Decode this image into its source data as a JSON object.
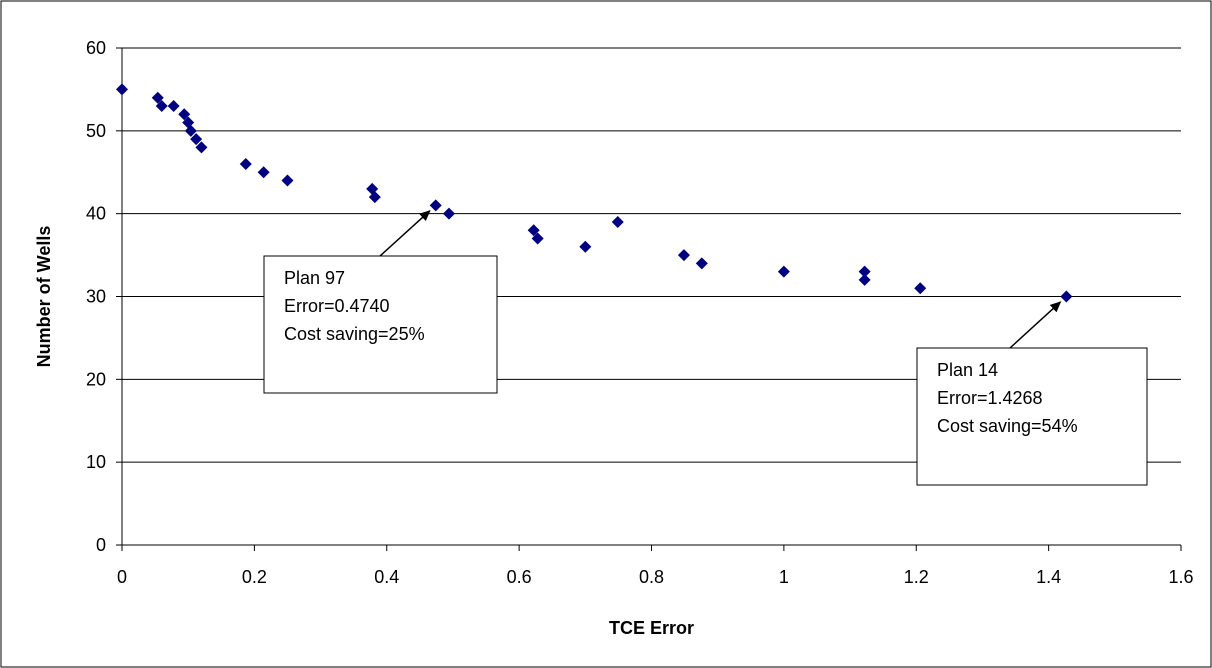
{
  "chart_data": {
    "type": "scatter",
    "title": "",
    "xlabel": "TCE Error",
    "ylabel": "Number of Wells",
    "xlim": [
      0,
      1.6
    ],
    "ylim": [
      0,
      60
    ],
    "x_ticks": [
      0,
      0.2,
      0.4,
      0.6,
      0.8,
      1,
      1.2,
      1.4,
      1.6
    ],
    "y_ticks": [
      0,
      10,
      20,
      30,
      40,
      50,
      60
    ],
    "grid": "horizontal",
    "legend": "none",
    "marker": "diamond",
    "marker_color": "#000080",
    "points": [
      {
        "x": 0.0,
        "y": 55
      },
      {
        "x": 0.054,
        "y": 54
      },
      {
        "x": 0.06,
        "y": 53
      },
      {
        "x": 0.078,
        "y": 53
      },
      {
        "x": 0.094,
        "y": 52
      },
      {
        "x": 0.1,
        "y": 51
      },
      {
        "x": 0.104,
        "y": 50
      },
      {
        "x": 0.112,
        "y": 49
      },
      {
        "x": 0.12,
        "y": 48
      },
      {
        "x": 0.187,
        "y": 46
      },
      {
        "x": 0.214,
        "y": 45
      },
      {
        "x": 0.25,
        "y": 44
      },
      {
        "x": 0.378,
        "y": 43
      },
      {
        "x": 0.382,
        "y": 42
      },
      {
        "x": 0.474,
        "y": 41
      },
      {
        "x": 0.494,
        "y": 40
      },
      {
        "x": 0.622,
        "y": 38
      },
      {
        "x": 0.628,
        "y": 37
      },
      {
        "x": 0.7,
        "y": 36
      },
      {
        "x": 0.749,
        "y": 39
      },
      {
        "x": 0.849,
        "y": 35
      },
      {
        "x": 0.876,
        "y": 34
      },
      {
        "x": 1.0,
        "y": 33
      },
      {
        "x": 1.122,
        "y": 33
      },
      {
        "x": 1.122,
        "y": 32
      },
      {
        "x": 1.206,
        "y": 31
      },
      {
        "x": 1.4268,
        "y": 30
      }
    ],
    "annotations": [
      {
        "lines": [
          "Plan 97",
          "Error=0.4740",
          "Cost saving=25%"
        ],
        "target": {
          "x": 0.474,
          "y": 41
        }
      },
      {
        "lines": [
          "Plan 14",
          "Error=1.4268",
          "Cost saving=54%"
        ],
        "target": {
          "x": 1.4268,
          "y": 30
        }
      }
    ]
  }
}
